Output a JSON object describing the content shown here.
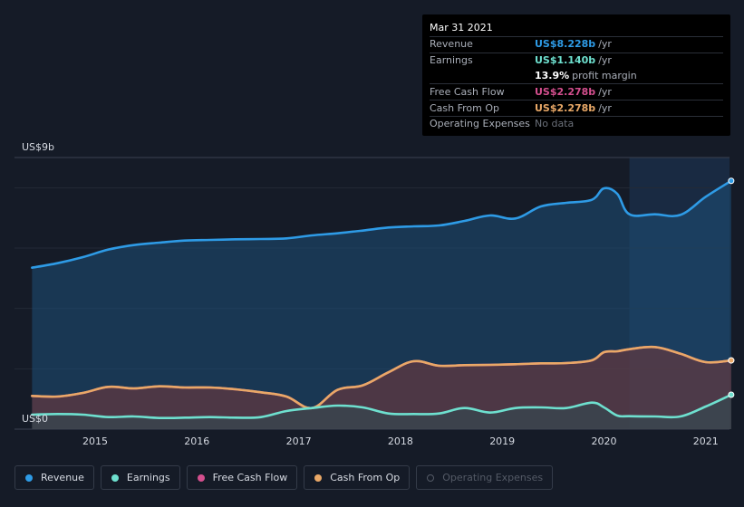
{
  "tooltip": {
    "date": "Mar 31 2021",
    "rows": {
      "revenue": {
        "label": "Revenue",
        "value": "US$8.228b",
        "unit": "/yr",
        "color": "#2e9be6"
      },
      "earnings": {
        "label": "Earnings",
        "value": "US$1.140b",
        "unit": "/yr",
        "color": "#6ee0cf"
      },
      "margin": {
        "value": "13.9%",
        "unit": "profit margin"
      },
      "fcf": {
        "label": "Free Cash Flow",
        "value": "US$2.278b",
        "unit": "/yr",
        "color": "#d44f8e"
      },
      "cfo": {
        "label": "Cash From Op",
        "value": "US$2.278b",
        "unit": "/yr",
        "color": "#e9a867"
      },
      "opex": {
        "label": "Operating Expenses",
        "value": "No data"
      }
    }
  },
  "legend": {
    "revenue": "Revenue",
    "earnings": "Earnings",
    "fcf": "Free Cash Flow",
    "cfo": "Cash From Op",
    "opex": "Operating Expenses"
  },
  "chart_data": {
    "type": "area",
    "y_top_label": "US$9b",
    "y_bottom_label": "US$0",
    "ylim": [
      0,
      9
    ],
    "xlim": [
      2014.38,
      2021.25
    ],
    "x_ticks": [
      "2015",
      "2016",
      "2017",
      "2018",
      "2019",
      "2020",
      "2021"
    ],
    "forecast_start": 2020.25,
    "series": [
      {
        "name": "Revenue",
        "color": "#2e9be6",
        "x": [
          2014.38,
          2014.63,
          2014.88,
          2015.13,
          2015.38,
          2015.63,
          2015.88,
          2016.13,
          2016.38,
          2016.63,
          2016.88,
          2017.13,
          2017.38,
          2017.63,
          2017.88,
          2018.13,
          2018.38,
          2018.63,
          2018.88,
          2019.13,
          2019.38,
          2019.63,
          2019.88,
          2020.0,
          2020.13,
          2020.25,
          2020.5,
          2020.75,
          2021.0,
          2021.25
        ],
        "values": [
          5.35,
          5.5,
          5.7,
          5.95,
          6.1,
          6.18,
          6.25,
          6.27,
          6.29,
          6.3,
          6.32,
          6.42,
          6.49,
          6.58,
          6.68,
          6.72,
          6.75,
          6.9,
          7.08,
          6.98,
          7.38,
          7.5,
          7.6,
          7.98,
          7.8,
          7.12,
          7.12,
          7.1,
          7.7,
          8.228
        ]
      },
      {
        "name": "Earnings",
        "color": "#6ee0cf",
        "x": [
          2014.38,
          2014.63,
          2014.88,
          2015.13,
          2015.38,
          2015.63,
          2015.88,
          2016.13,
          2016.38,
          2016.63,
          2016.88,
          2017.13,
          2017.38,
          2017.63,
          2017.88,
          2018.13,
          2018.38,
          2018.63,
          2018.88,
          2019.13,
          2019.38,
          2019.63,
          2019.88,
          2020.0,
          2020.13,
          2020.25,
          2020.5,
          2020.75,
          2021.0,
          2021.25
        ],
        "values": [
          0.48,
          0.5,
          0.48,
          0.4,
          0.42,
          0.37,
          0.38,
          0.4,
          0.38,
          0.4,
          0.6,
          0.7,
          0.78,
          0.72,
          0.52,
          0.5,
          0.52,
          0.7,
          0.55,
          0.7,
          0.72,
          0.7,
          0.88,
          0.72,
          0.45,
          0.43,
          0.42,
          0.42,
          0.75,
          1.14
        ]
      },
      {
        "name": "Free Cash Flow",
        "color": "#d44f8e",
        "x": [
          2014.38,
          2014.63,
          2014.88,
          2015.13,
          2015.38,
          2015.63,
          2015.88,
          2016.13,
          2016.38,
          2016.63,
          2016.88,
          2017.13,
          2017.38,
          2017.63,
          2017.88,
          2018.13,
          2018.38,
          2018.63,
          2018.88,
          2019.13,
          2019.38,
          2019.63,
          2019.88,
          2020.0,
          2020.13,
          2020.25,
          2020.5,
          2020.75,
          2021.0,
          2021.25
        ],
        "values": [
          1.1,
          1.08,
          1.2,
          1.4,
          1.35,
          1.42,
          1.38,
          1.38,
          1.32,
          1.22,
          1.08,
          0.7,
          1.3,
          1.45,
          1.88,
          2.25,
          2.1,
          2.12,
          2.13,
          2.15,
          2.18,
          2.19,
          2.28,
          2.55,
          2.58,
          2.65,
          2.72,
          2.5,
          2.22,
          2.278
        ]
      },
      {
        "name": "Cash From Op",
        "color": "#e9a867",
        "x": [
          2014.38,
          2014.63,
          2014.88,
          2015.13,
          2015.38,
          2015.63,
          2015.88,
          2016.13,
          2016.38,
          2016.63,
          2016.88,
          2017.13,
          2017.38,
          2017.63,
          2017.88,
          2018.13,
          2018.38,
          2018.63,
          2018.88,
          2019.13,
          2019.38,
          2019.63,
          2019.88,
          2020.0,
          2020.13,
          2020.25,
          2020.5,
          2020.75,
          2021.0,
          2021.25
        ],
        "values": [
          1.1,
          1.08,
          1.2,
          1.4,
          1.35,
          1.42,
          1.38,
          1.38,
          1.32,
          1.22,
          1.08,
          0.7,
          1.3,
          1.45,
          1.88,
          2.25,
          2.1,
          2.12,
          2.13,
          2.15,
          2.18,
          2.19,
          2.28,
          2.55,
          2.58,
          2.65,
          2.72,
          2.5,
          2.22,
          2.278
        ]
      }
    ]
  }
}
